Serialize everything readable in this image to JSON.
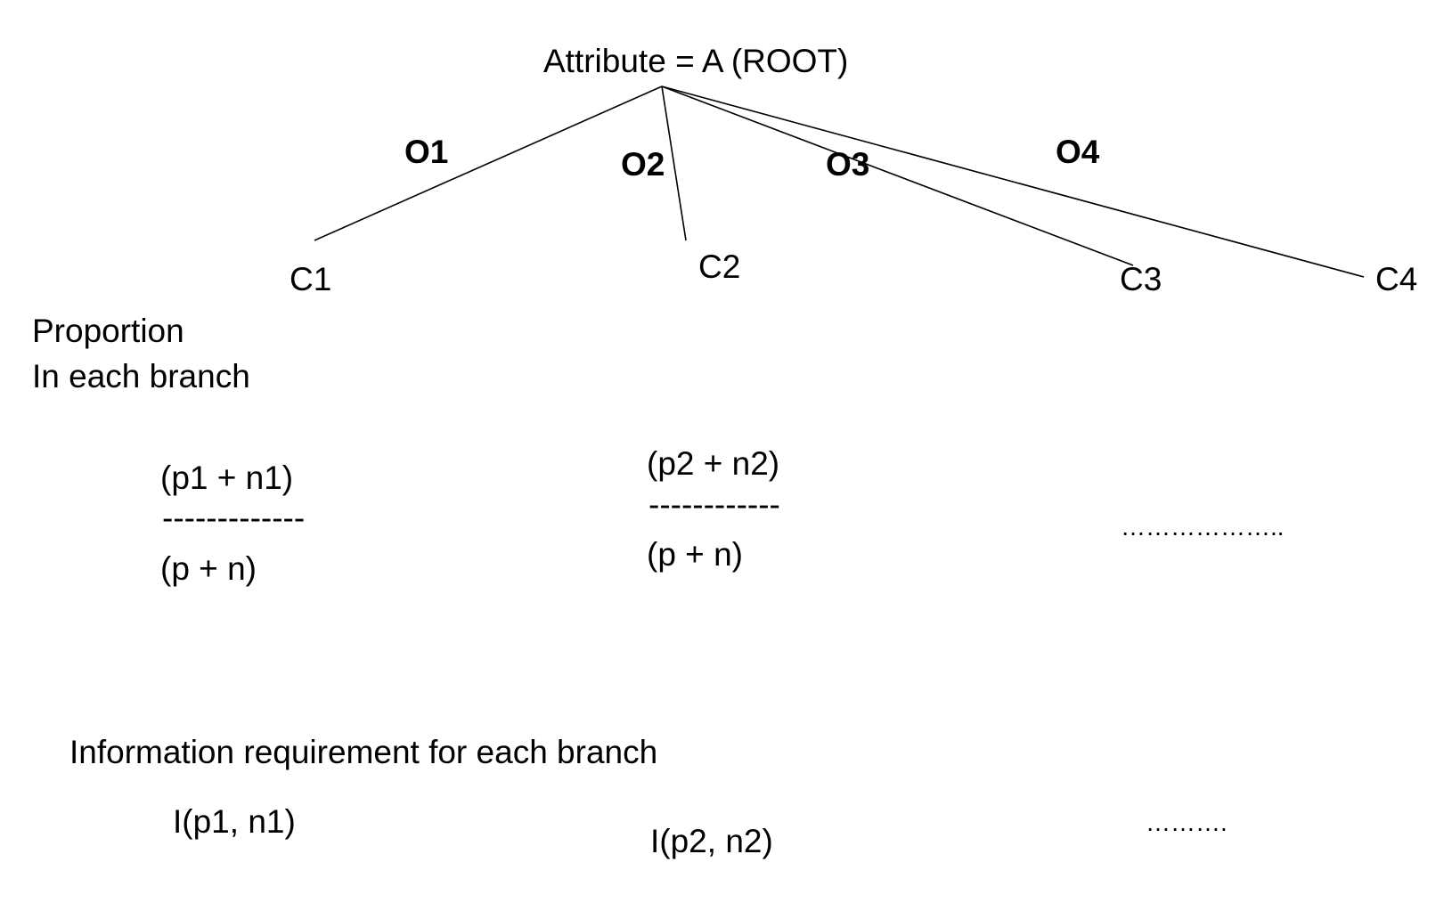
{
  "root": "Attribute = A  (ROOT)",
  "branches": [
    {
      "label": "O1",
      "child": "C1"
    },
    {
      "label": "O2",
      "child": "C2"
    },
    {
      "label": "O3",
      "child": "C3"
    },
    {
      "label": "O4",
      "child": "C4"
    }
  ],
  "proportion": {
    "heading_line1": "Proportion",
    "heading_line2": "In each branch",
    "b1": {
      "numerator": "(p1 + n1)",
      "bar": "-------------",
      "denominator": "(p + n)"
    },
    "b2": {
      "numerator": "(p2 + n2)",
      "bar": "------------",
      "denominator": "(p + n)"
    },
    "ellipsis": "……………….."
  },
  "information": {
    "heading": "Information requirement for each branch",
    "b1": "I(p1, n1)",
    "b2": "I(p2, n2)",
    "ellipsis": "………."
  }
}
